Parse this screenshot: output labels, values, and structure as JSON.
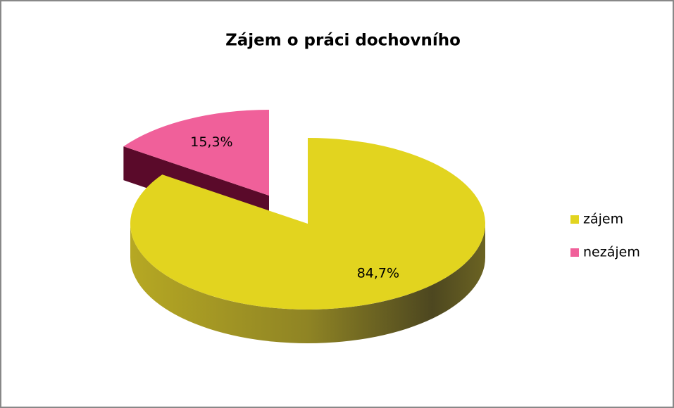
{
  "chart_data": {
    "type": "pie",
    "title": "Zájem o práci dochovního",
    "categories": [
      "zájem",
      "nezájem"
    ],
    "values": [
      84.7,
      15.3
    ],
    "value_labels": [
      "84,7%",
      "15,3%"
    ],
    "colors": [
      "#e2d41f",
      "#f0609a"
    ],
    "legend": "right"
  }
}
